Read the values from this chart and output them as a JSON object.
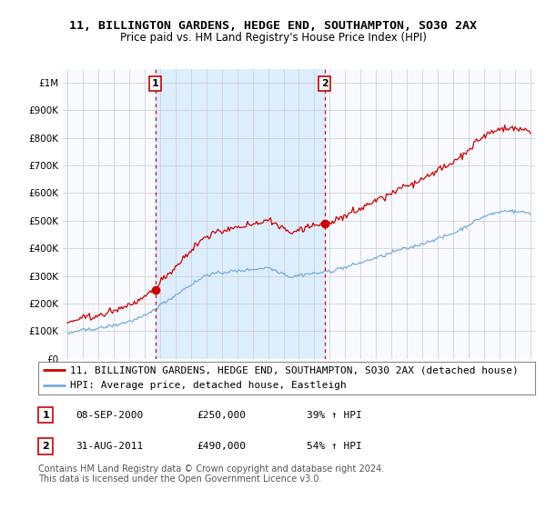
{
  "title": "11, BILLINGTON GARDENS, HEDGE END, SOUTHAMPTON, SO30 2AX",
  "subtitle": "Price paid vs. HM Land Registry's House Price Index (HPI)",
  "ylim": [
    0,
    1050000
  ],
  "yticks": [
    0,
    100000,
    200000,
    300000,
    400000,
    500000,
    600000,
    700000,
    800000,
    900000,
    1000000
  ],
  "ytick_labels": [
    "£0",
    "£100K",
    "£200K",
    "£300K",
    "£400K",
    "£500K",
    "£600K",
    "£700K",
    "£800K",
    "£900K",
    "£1M"
  ],
  "x_start_year": 1995,
  "x_end_year": 2025,
  "red_line_color": "#cc0000",
  "blue_line_color": "#7aacdc",
  "shade_color": "#ddeeff",
  "sale1_year_f": 2000.69,
  "sale1_price": 250000,
  "sale2_year_f": 2011.66,
  "sale2_price": 490000,
  "vline_color": "#dd0000",
  "legend_red_label": "11, BILLINGTON GARDENS, HEDGE END, SOUTHAMPTON, SO30 2AX (detached house)",
  "legend_blue_label": "HPI: Average price, detached house, Eastleigh",
  "transaction1": [
    "1",
    "08-SEP-2000",
    "£250,000",
    "39% ↑ HPI"
  ],
  "transaction2": [
    "2",
    "31-AUG-2011",
    "£490,000",
    "54% ↑ HPI"
  ],
  "footnote": "Contains HM Land Registry data © Crown copyright and database right 2024.\nThis data is licensed under the Open Government Licence v3.0.",
  "background_color": "#ffffff",
  "plot_bg_color": "#f8faff",
  "grid_color": "#cccccc",
  "title_fontsize": 9.5,
  "subtitle_fontsize": 8.5,
  "tick_fontsize": 7.5,
  "legend_fontsize": 8,
  "footnote_fontsize": 7
}
